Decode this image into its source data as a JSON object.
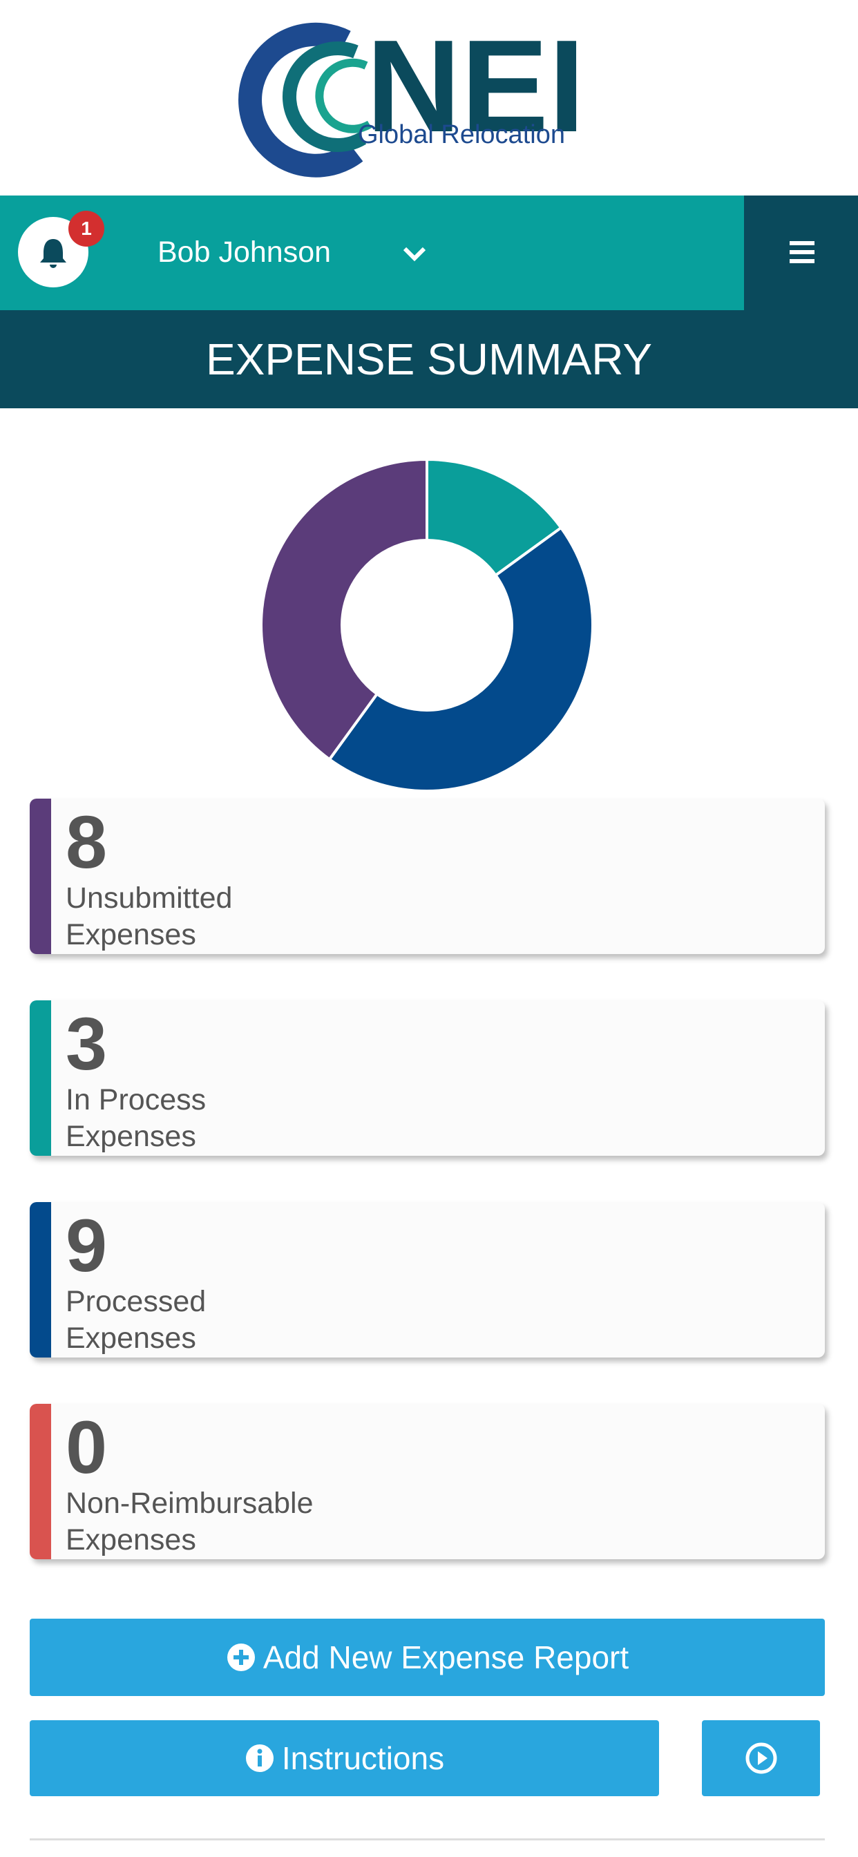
{
  "header": {
    "logo_mark": "NEI",
    "logo_sub": "Global Relocation",
    "notification_count": 1,
    "user_name": "Bob Johnson",
    "page_title": "EXPENSE SUMMARY"
  },
  "chart_data": {
    "type": "donut",
    "categories": [
      "Unsubmitted\nExpenses",
      "In Process\nExpenses",
      "Processed\nExpenses",
      "Non-Reimbursable\nExpenses"
    ],
    "values": [
      8,
      3,
      9,
      0
    ],
    "colors": [
      "#5b3c7a",
      "#0a9e9a",
      "#034a8c",
      "#d9534f"
    ]
  },
  "buttons": {
    "add": "Add New Expense Report",
    "instructions": "Instructions"
  }
}
